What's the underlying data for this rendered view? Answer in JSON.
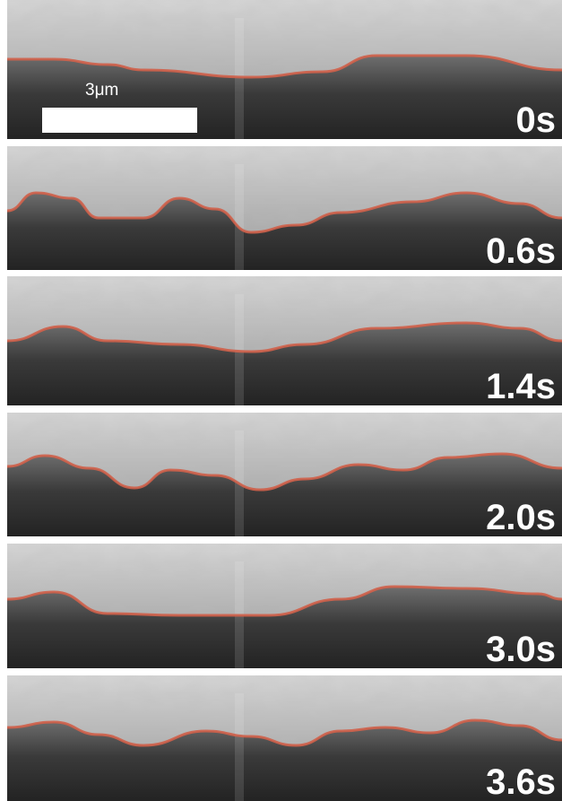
{
  "scale_bar": {
    "label": "3μm"
  },
  "panels": [
    {
      "time_label": "0s"
    },
    {
      "time_label": "0.6s"
    },
    {
      "time_label": "1.4s"
    },
    {
      "time_label": "2.0s"
    },
    {
      "time_label": "3.0s"
    },
    {
      "time_label": "3.6s"
    }
  ]
}
